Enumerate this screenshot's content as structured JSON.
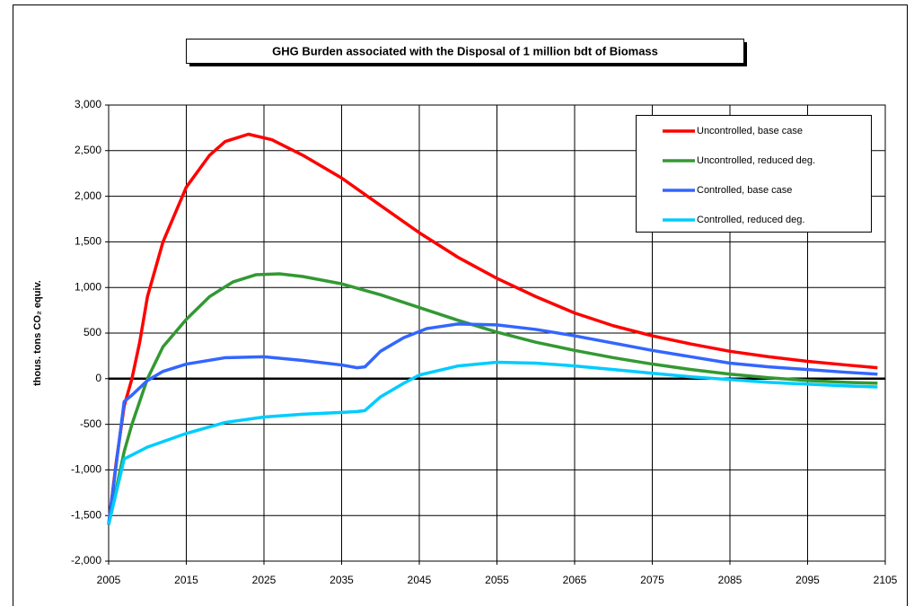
{
  "chart_data": {
    "type": "line",
    "title": "GHG Burden associated with the Disposal of 1 million bdt of Biomass",
    "ylabel": "thous. tons CO₂ equiv.",
    "xlim": [
      2005,
      2105
    ],
    "xticks": [
      2005,
      2015,
      2025,
      2035,
      2045,
      2055,
      2065,
      2075,
      2085,
      2095,
      2105
    ],
    "ylim": [
      -2000,
      3000
    ],
    "yticks": [
      {
        "value": -2000,
        "label": "-2,000"
      },
      {
        "value": -1500,
        "label": "-1,500"
      },
      {
        "value": -1000,
        "label": "-1,000"
      },
      -500,
      0,
      500,
      {
        "value": 1000,
        "label": "1,000"
      },
      {
        "value": 1500,
        "label": "1,500"
      },
      {
        "value": 2000,
        "label": "2,000"
      },
      {
        "value": 2500,
        "label": "2,500"
      },
      {
        "value": 3000,
        "label": "3,000"
      }
    ],
    "grid": true,
    "legend": "upper right",
    "series": [
      {
        "name": "Uncontrolled, base case",
        "color": "#ff0000",
        "x": [
          2005,
          2006,
          2007,
          2008,
          2009,
          2010,
          2012,
          2015,
          2018,
          2020,
          2023,
          2026,
          2030,
          2035,
          2040,
          2045,
          2050,
          2055,
          2060,
          2065,
          2070,
          2075,
          2080,
          2085,
          2090,
          2095,
          2100,
          2104
        ],
        "values": [
          -1600,
          -900,
          -300,
          0,
          400,
          900,
          1500,
          2100,
          2450,
          2600,
          2680,
          2620,
          2450,
          2200,
          1900,
          1600,
          1330,
          1100,
          900,
          720,
          580,
          470,
          380,
          300,
          240,
          190,
          150,
          120
        ]
      },
      {
        "name": "Uncontrolled, reduced deg.",
        "color": "#339933",
        "x": [
          2005,
          2007,
          2008,
          2010,
          2012,
          2015,
          2018,
          2021,
          2024,
          2027,
          2030,
          2035,
          2040,
          2045,
          2050,
          2055,
          2060,
          2065,
          2070,
          2075,
          2080,
          2085,
          2090,
          2095,
          2100,
          2104
        ],
        "values": [
          -1600,
          -800,
          -500,
          0,
          350,
          650,
          900,
          1060,
          1140,
          1150,
          1120,
          1040,
          920,
          780,
          640,
          510,
          400,
          310,
          230,
          160,
          100,
          50,
          10,
          -20,
          -40,
          -50
        ]
      },
      {
        "name": "Controlled, base case",
        "color": "#3366ff",
        "x": [
          2005,
          2007,
          2008,
          2010,
          2012,
          2015,
          2020,
          2025,
          2030,
          2035,
          2037,
          2038,
          2040,
          2043,
          2046,
          2050,
          2055,
          2060,
          2065,
          2070,
          2075,
          2080,
          2085,
          2090,
          2095,
          2100,
          2104
        ],
        "values": [
          -1600,
          -250,
          -180,
          -20,
          80,
          160,
          230,
          240,
          200,
          150,
          120,
          130,
          300,
          450,
          550,
          600,
          590,
          540,
          470,
          390,
          310,
          240,
          170,
          130,
          100,
          70,
          50
        ]
      },
      {
        "name": "Controlled, reduced deg.",
        "color": "#00ccff",
        "x": [
          2005,
          2007,
          2010,
          2015,
          2020,
          2025,
          2030,
          2035,
          2037,
          2038,
          2040,
          2043,
          2045,
          2050,
          2055,
          2060,
          2065,
          2070,
          2075,
          2080,
          2085,
          2090,
          2095,
          2100,
          2104
        ],
        "values": [
          -1600,
          -880,
          -750,
          -600,
          -480,
          -420,
          -390,
          -370,
          -360,
          -350,
          -200,
          -50,
          40,
          140,
          180,
          170,
          140,
          100,
          60,
          20,
          -10,
          -40,
          -60,
          -80,
          -90
        ]
      }
    ]
  }
}
